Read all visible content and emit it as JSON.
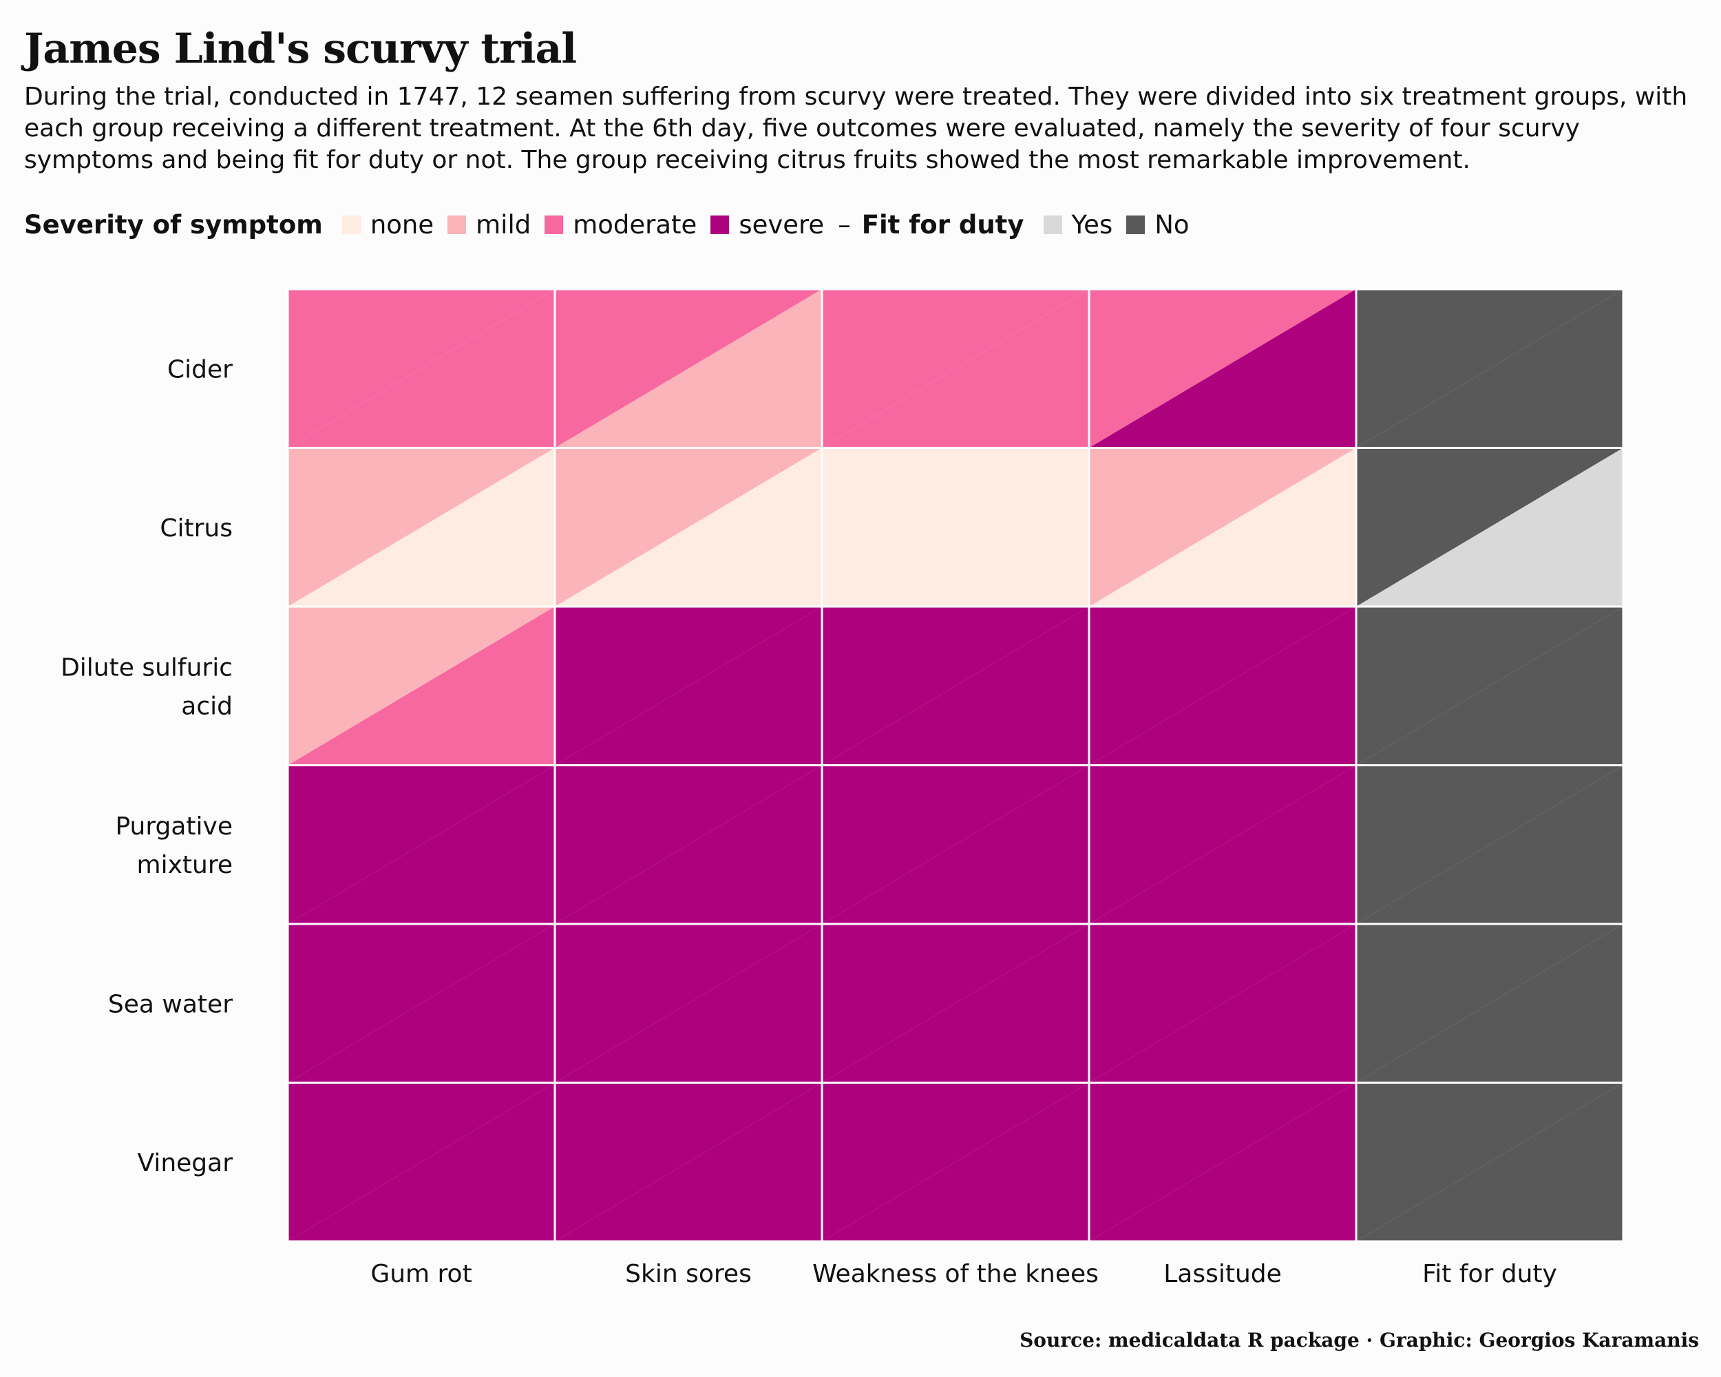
{
  "header": {
    "title": "James Lind's scurvy trial",
    "subtitle": "During the trial, conducted in 1747, 12 seamen suffering from scurvy were treated. They were divided into six treatment groups, with each group receiving a different treatment. At the 6th day, five outcomes were evaluated, namely the severity of four scurvy symptoms and being fit for duty or not. The group receiving citrus fruits showed the most remarkable improvement."
  },
  "legend": {
    "severity_title": "Severity of symptom",
    "severity_items": [
      {
        "label": "none",
        "color": "#feebe2"
      },
      {
        "label": "mild",
        "color": "#fbb4b9"
      },
      {
        "label": "moderate",
        "color": "#f768a1"
      },
      {
        "label": "severe",
        "color": "#ae017e"
      }
    ],
    "separator": "–",
    "fit_title": "Fit for duty",
    "fit_items": [
      {
        "label": "Yes",
        "color": "#d9d9d9"
      },
      {
        "label": "No",
        "color": "#595959"
      }
    ]
  },
  "chart_data": {
    "type": "heatmap",
    "title": "James Lind's scurvy trial",
    "note": "Each cell is split diagonally into two triangles, one per seaman in the treatment group (upper-left triangle = first seaman, lower-right triangle = second seaman).",
    "rows": [
      "Cider",
      "Citrus",
      "Dilute sulfuric\nacid",
      "Purgative\nmixture",
      "Sea water",
      "Vinegar"
    ],
    "columns": [
      "Gum rot",
      "Skin sores",
      "Weakness of the knees",
      "Lassitude",
      "Fit for duty"
    ],
    "cells": [
      [
        [
          "moderate",
          "moderate"
        ],
        [
          "moderate",
          "mild"
        ],
        [
          "moderate",
          "moderate"
        ],
        [
          "moderate",
          "severe"
        ],
        [
          "No",
          "No"
        ]
      ],
      [
        [
          "mild",
          "none"
        ],
        [
          "mild",
          "none"
        ],
        [
          "none",
          "none"
        ],
        [
          "mild",
          "none"
        ],
        [
          "No",
          "Yes"
        ]
      ],
      [
        [
          "mild",
          "moderate"
        ],
        [
          "severe",
          "severe"
        ],
        [
          "severe",
          "severe"
        ],
        [
          "severe",
          "severe"
        ],
        [
          "No",
          "No"
        ]
      ],
      [
        [
          "severe",
          "severe"
        ],
        [
          "severe",
          "severe"
        ],
        [
          "severe",
          "severe"
        ],
        [
          "severe",
          "severe"
        ],
        [
          "No",
          "No"
        ]
      ],
      [
        [
          "severe",
          "severe"
        ],
        [
          "severe",
          "severe"
        ],
        [
          "severe",
          "severe"
        ],
        [
          "severe",
          "severe"
        ],
        [
          "No",
          "No"
        ]
      ],
      [
        [
          "severe",
          "severe"
        ],
        [
          "severe",
          "severe"
        ],
        [
          "severe",
          "severe"
        ],
        [
          "severe",
          "severe"
        ],
        [
          "No",
          "No"
        ]
      ]
    ],
    "colors": {
      "none": "#feebe2",
      "mild": "#fbb4b9",
      "moderate": "#f768a1",
      "severe": "#ae017e",
      "Yes": "#d9d9d9",
      "No": "#595959"
    }
  },
  "caption": "Source: medicaldata R package · Graphic: Georgios Karamanis"
}
